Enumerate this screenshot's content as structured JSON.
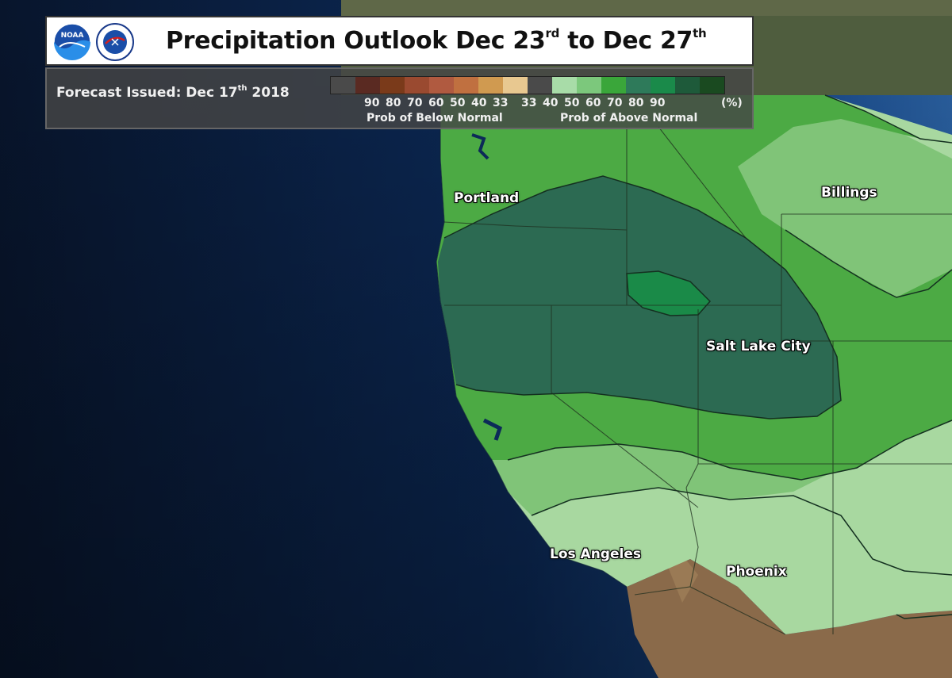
{
  "title": {
    "main": "Precipitation Outlook Dec 23",
    "sup1": "rd",
    "mid": " to Dec 27",
    "sup2": "th"
  },
  "issued": {
    "prefix": "Forecast Issued: Dec 17",
    "sup": "th",
    "suffix": " 2018"
  },
  "legend": {
    "below_label": "Prob of Below Normal",
    "above_label": "Prob of Above Normal",
    "unit": "(%)",
    "ticks": [
      "90",
      "80",
      "70",
      "60",
      "50",
      "40",
      "33",
      "33",
      "40",
      "50",
      "60",
      "70",
      "80",
      "90"
    ],
    "colors": [
      "#4a4a4a",
      "#5a2a22",
      "#7a3a1a",
      "#9a4a30",
      "#b05a40",
      "#c07040",
      "#d09a50",
      "#e8c890",
      "#4a4a4a",
      "#a8dca8",
      "#7cc87c",
      "#3aa63a",
      "#2e7a5a",
      "#1a8a4a",
      "#1e5a3a",
      "#1a4a20"
    ]
  },
  "cities": [
    {
      "name": "Portland"
    },
    {
      "name": "Billings"
    },
    {
      "name": "Salt Lake City"
    },
    {
      "name": "Los Angeles"
    },
    {
      "name": "Phoenix"
    }
  ],
  "logos": {
    "noaa": "noaa-logo",
    "nws": "nws-logo"
  }
}
